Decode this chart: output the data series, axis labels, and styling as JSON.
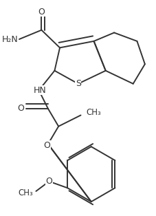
{
  "bg_color": "#ffffff",
  "line_color": "#333333",
  "line_width": 1.4,
  "figsize": [
    2.28,
    3.14
  ],
  "dpi": 100,
  "xlim": [
    0,
    228
  ],
  "ylim": [
    0,
    314
  ]
}
